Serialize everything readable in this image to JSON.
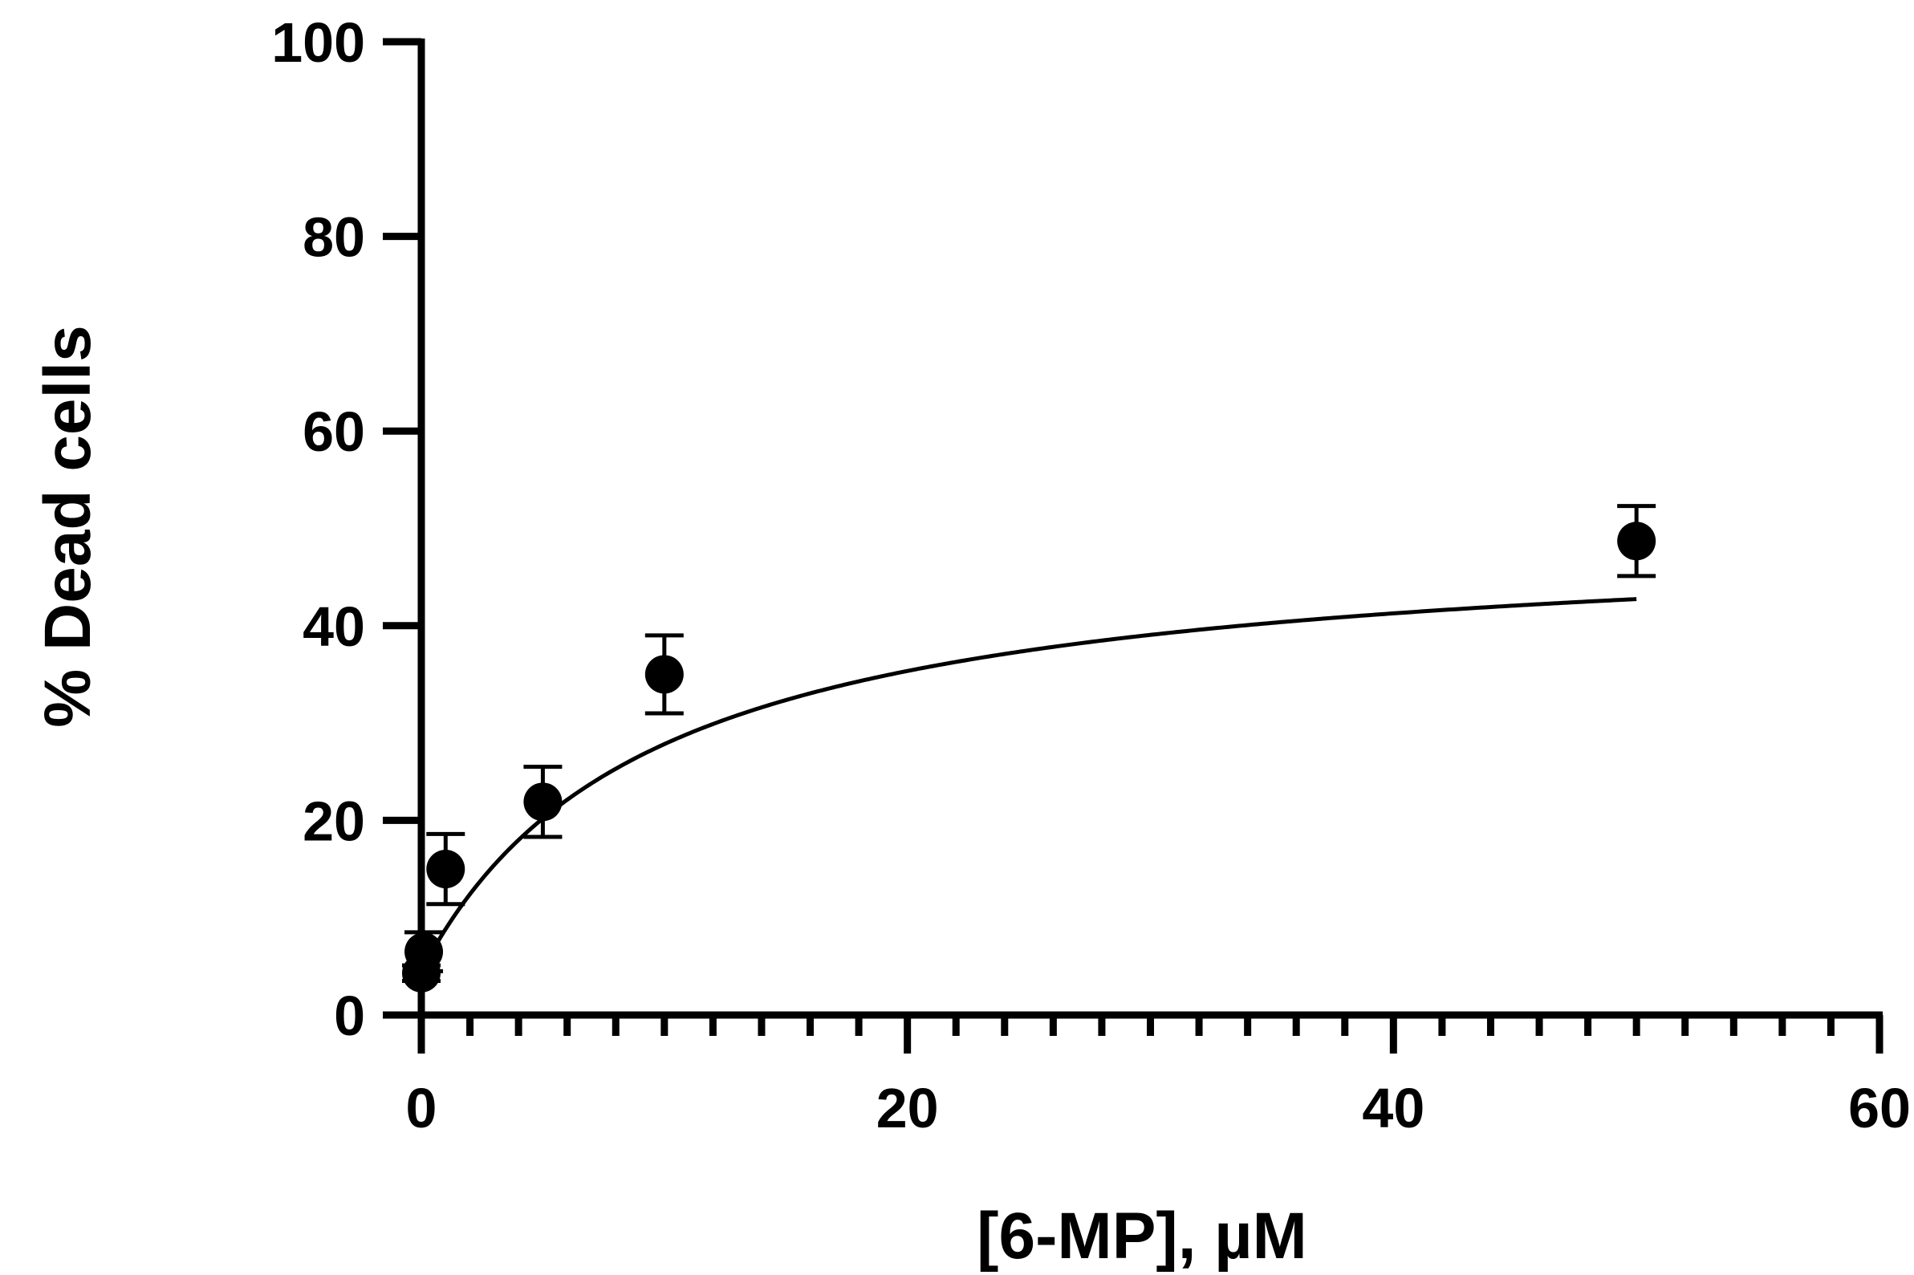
{
  "chart_data": {
    "type": "scatter",
    "xlabel": "[6-MP], µM",
    "ylabel": "% Dead cells",
    "xlim": [
      0,
      60
    ],
    "ylim": [
      0,
      100
    ],
    "x_major_ticks": [
      0,
      20,
      40,
      60
    ],
    "x_minor_step": 2,
    "y_ticks": [
      0,
      20,
      40,
      60,
      80,
      100
    ],
    "grid": false,
    "legend": "none",
    "points": [
      {
        "x": 0,
        "y": 4.3,
        "err": 0.8
      },
      {
        "x": 0.1,
        "y": 6.5,
        "err": 2.0
      },
      {
        "x": 1,
        "y": 15.0,
        "err": 3.6
      },
      {
        "x": 5,
        "y": 21.9,
        "err": 3.6
      },
      {
        "x": 10,
        "y": 35.0,
        "err": 4.0
      },
      {
        "x": 50,
        "y": 48.7,
        "err": 3.6
      }
    ],
    "fit": {
      "model": "hyperbolic",
      "y0": 4.5,
      "ymax": 50,
      "k": 9.5
    },
    "colors": {
      "marker": "#000000",
      "line": "#000000",
      "axis": "#000000"
    }
  }
}
